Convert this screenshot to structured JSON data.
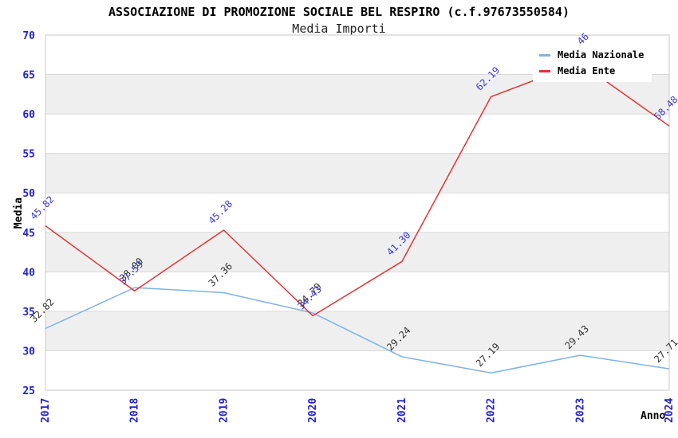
{
  "chart_data": {
    "type": "line",
    "title": "ASSOCIAZIONE DI PROMOZIONE SOCIALE BEL RESPIRO (c.f.97673550584)",
    "subtitle": "Media Importi",
    "xlabel": "Anno",
    "ylabel": "Media",
    "categories": [
      "2017",
      "2018",
      "2019",
      "2020",
      "2021",
      "2022",
      "2023",
      "2024"
    ],
    "ylim": [
      25,
      70
    ],
    "ytick_step": 5,
    "grid": "horizontal gridlines, alternating gray bands every 5 units",
    "legend_position": "top-right inside plot, white box",
    "series": [
      {
        "name": "Media Nazionale",
        "line_color": "#7fb2e7",
        "label_color": "#333333",
        "values": [
          32.82,
          38.0,
          37.36,
          34.79,
          29.24,
          27.19,
          29.43,
          27.71
        ]
      },
      {
        "name": "Media Ente",
        "line_color": "#e13434",
        "label_color": "#3939cf",
        "values": [
          45.82,
          37.59,
          45.28,
          34.43,
          41.3,
          62.19,
          66.46,
          58.48
        ],
        "note": "2023 data label is almost fully hidden behind the legend box"
      }
    ]
  },
  "axis_style": {
    "tick_label_color": "#2222cd",
    "band_color": "#efefef",
    "gridline_color": "#dadada",
    "border_color": "#c8c8c8"
  }
}
